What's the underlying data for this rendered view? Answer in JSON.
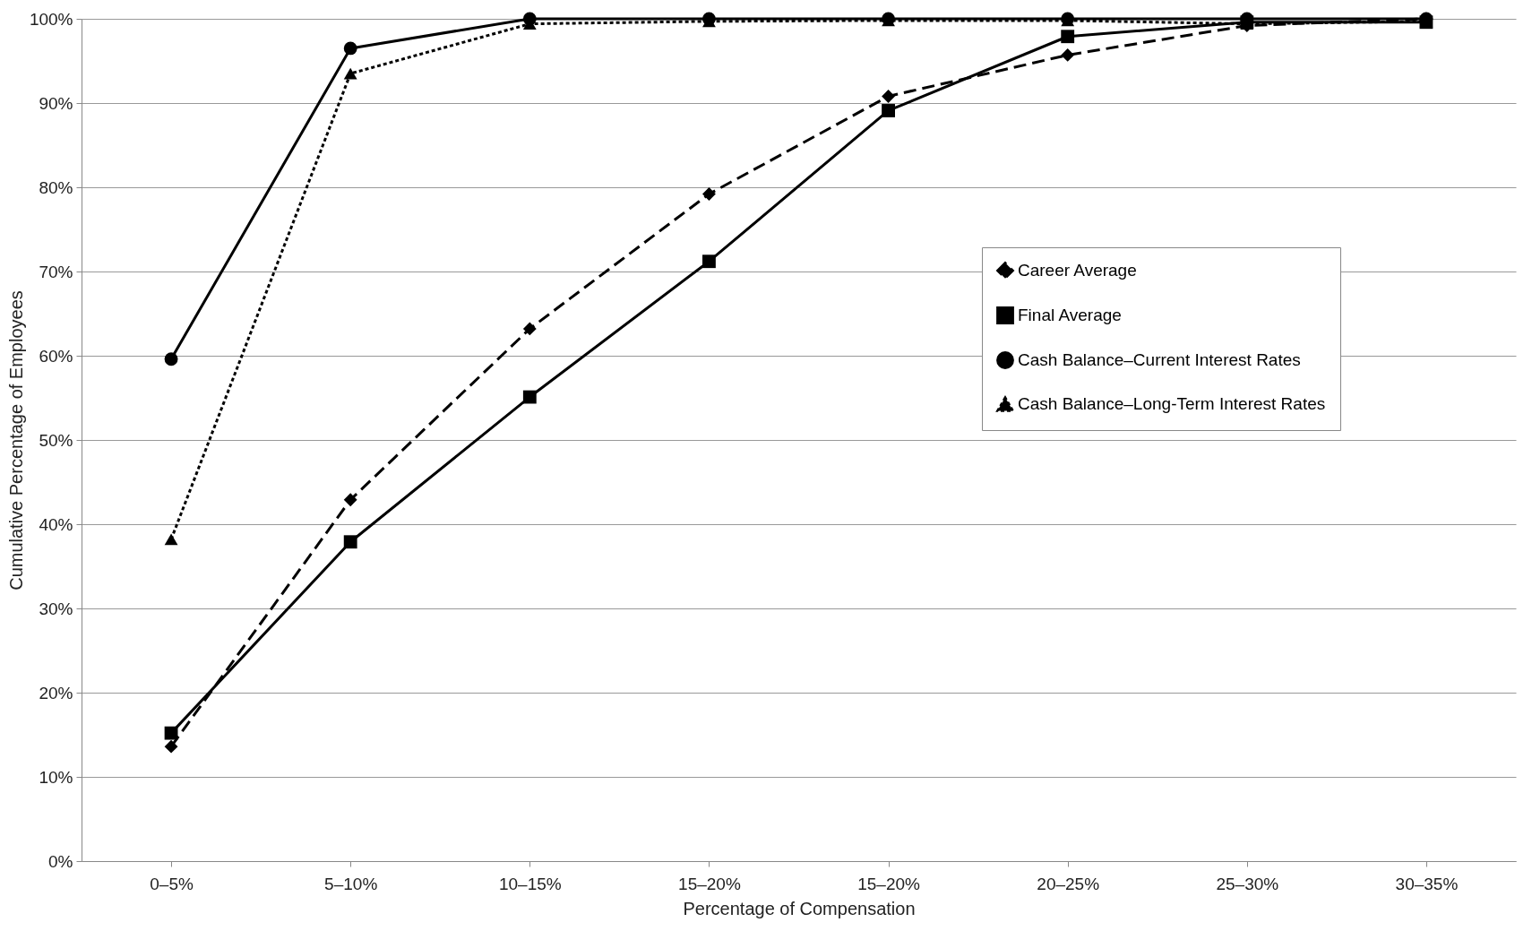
{
  "chart_data": {
    "type": "line",
    "xlabel": "Percentage of Compensation",
    "ylabel": "Cumulative Percentage of Employees",
    "categories": [
      "0–5%",
      "5–10%",
      "10–15%",
      "15–20%",
      "15–20%",
      "20–25%",
      "25–30%",
      "30–35%"
    ],
    "series": [
      {
        "name": "Career Average",
        "color": "#000000",
        "marker": "diamond",
        "line_style": "dashed",
        "values": [
          13.6,
          42.9,
          63.2,
          79.2,
          90.8,
          95.7,
          99.2,
          100
        ]
      },
      {
        "name": "Final Average",
        "color": "#000000",
        "marker": "square",
        "line_style": "solid",
        "values": [
          15.2,
          37.9,
          55.1,
          71.2,
          89.1,
          97.9,
          99.6,
          99.6
        ]
      },
      {
        "name": "Cash Balance–Current Interest Rates",
        "color": "#000000",
        "marker": "circle",
        "line_style": "solid",
        "values": [
          59.6,
          96.5,
          100,
          100,
          100,
          100,
          100,
          100
        ]
      },
      {
        "name": "Cash Balance–Long-Term Interest Rates",
        "color": "#000000",
        "marker": "triangle",
        "line_style": "dotted",
        "values": [
          38.2,
          93.5,
          99.4,
          99.7,
          99.8,
          99.8,
          99.4,
          99.7
        ]
      }
    ],
    "ylim": [
      0,
      100
    ],
    "yticks": [
      {
        "value": 0,
        "label": "0%"
      },
      {
        "value": 10,
        "label": "10%"
      },
      {
        "value": 20,
        "label": "20%"
      },
      {
        "value": 30,
        "label": "30%"
      },
      {
        "value": 40,
        "label": "40%"
      },
      {
        "value": 50,
        "label": "50%"
      },
      {
        "value": 60,
        "label": "60%"
      },
      {
        "value": 70,
        "label": "70%"
      },
      {
        "value": 80,
        "label": "80%"
      },
      {
        "value": 90,
        "label": "90%"
      },
      {
        "value": 100,
        "label": "100%"
      }
    ],
    "grid": "y",
    "legend": "top right"
  }
}
